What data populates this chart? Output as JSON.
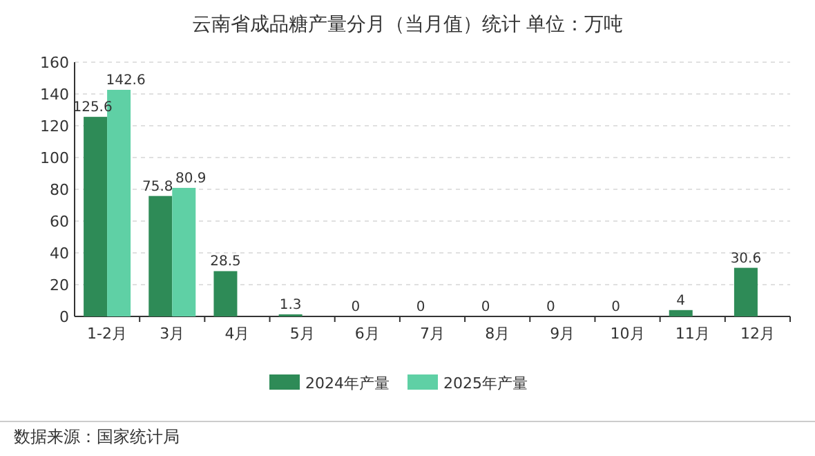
{
  "chart_data": {
    "type": "bar",
    "title": "云南省成品糖产量分月（当月值）统计  单位：万吨",
    "categories": [
      "1-2月",
      "3月",
      "4月",
      "5月",
      "6月",
      "7月",
      "8月",
      "9月",
      "10月",
      "11月",
      "12月"
    ],
    "series": [
      {
        "name": "2024年产量",
        "color": "#2e8b57",
        "values": [
          125.6,
          75.8,
          28.5,
          1.3,
          0,
          0,
          0,
          0,
          0,
          4,
          30.6
        ]
      },
      {
        "name": "2025年产量",
        "color": "#5fd0a5",
        "values": [
          142.6,
          80.9,
          null,
          null,
          null,
          null,
          null,
          null,
          null,
          null,
          null
        ]
      }
    ],
    "ylim": [
      0,
      160
    ],
    "yticks": [
      0,
      20,
      40,
      60,
      80,
      100,
      120,
      140,
      160
    ],
    "grid": "y",
    "legend": "bottom",
    "data_labels": true,
    "annotations": [
      "数据来源：国家统计局"
    ]
  }
}
